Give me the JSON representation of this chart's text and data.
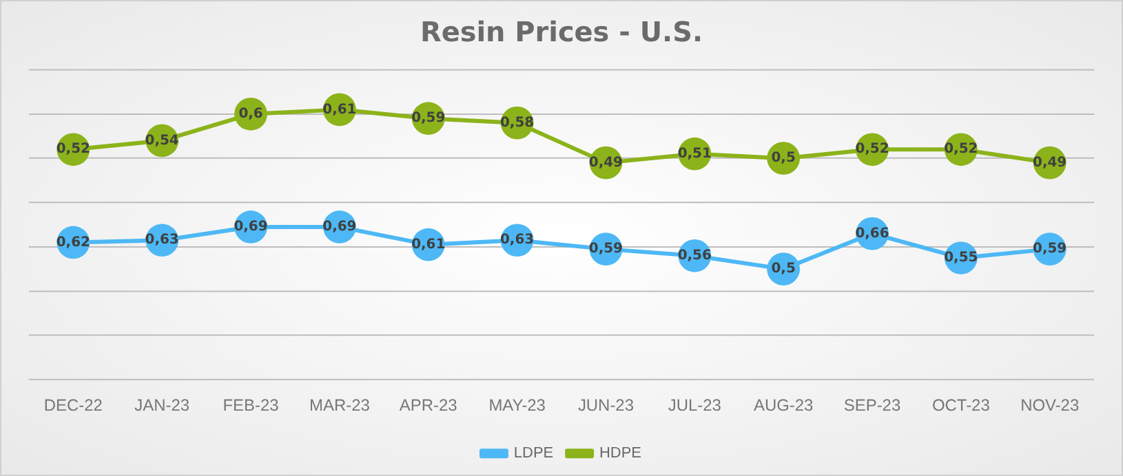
{
  "chart_data": {
    "type": "line",
    "title": "Resin Prices - U.S.",
    "categories": [
      "DEC-22",
      "JAN-23",
      "FEB-23",
      "MAR-23",
      "APR-23",
      "MAY-23",
      "JUN-23",
      "JUL-23",
      "AUG-23",
      "SEP-23",
      "OCT-23",
      "NOV-23"
    ],
    "series": [
      {
        "name": "LDPE",
        "color": "#4db8f5",
        "values": [
          0.62,
          0.63,
          0.69,
          0.69,
          0.61,
          0.63,
          0.59,
          0.56,
          0.5,
          0.66,
          0.55,
          0.59
        ],
        "value_labels": [
          "0,62",
          "0,63",
          "0,69",
          "0,69",
          "0,61",
          "0,63",
          "0,59",
          "0,56",
          "0,5",
          "0,66",
          "0,55",
          "0,59"
        ]
      },
      {
        "name": "HDPE",
        "color": "#8cb31a",
        "axis": "y2",
        "values": [
          0.52,
          0.54,
          0.6,
          0.61,
          0.59,
          0.58,
          0.49,
          0.51,
          0.5,
          0.52,
          0.52,
          0.49
        ],
        "value_labels": [
          "0,52",
          "0,54",
          "0,6",
          "0,61",
          "0,59",
          "0,58",
          "0,49",
          "0,51",
          "0,5",
          "0,52",
          "0,52",
          "0,49"
        ]
      }
    ],
    "ylim": [
      0,
      1.4
    ],
    "yticks": [
      {
        "value": 0,
        "label": null
      },
      {
        "value": 0.2,
        "label": null
      },
      {
        "value": 0.4,
        "label": null
      },
      {
        "value": 0.6,
        "label": null
      },
      {
        "value": 0.8,
        "label": null
      },
      {
        "value": 1,
        "label": null
      },
      {
        "value": 1.2,
        "label": null
      },
      {
        "value": 1.4,
        "label": null
      }
    ],
    "y2lim": [
      0,
      0.7
    ],
    "tick_labels": "x",
    "grid": "y",
    "legend": "bottom",
    "marker": "circle",
    "line_style": "solid"
  }
}
